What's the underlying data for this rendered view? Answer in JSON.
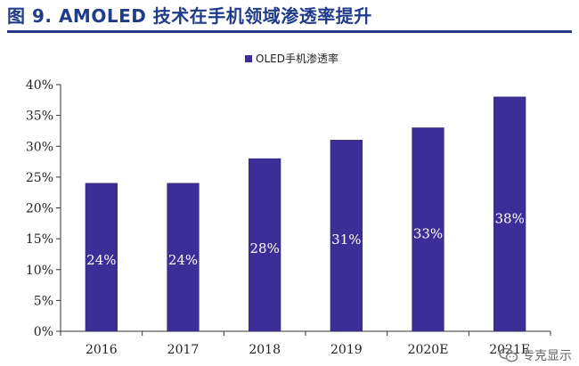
{
  "figure": {
    "title": "图 9. AMOLED 技术在手机领域渗透率提升"
  },
  "watermark": {
    "text": "专克显示",
    "icon": "wechat-icon"
  },
  "colors": {
    "bar": "#3d2d96",
    "title": "#1f3b8a",
    "axis": "#333333",
    "bar_label": "#ffffff"
  },
  "chart_data": {
    "type": "bar",
    "title": "",
    "legend": [
      "OLED手机渗透率"
    ],
    "legend_position": "top-center",
    "categories": [
      "2016",
      "2017",
      "2018",
      "2019",
      "2020E",
      "2021E"
    ],
    "series": [
      {
        "name": "OLED手机渗透率",
        "values": [
          24,
          24,
          28,
          31,
          33,
          38
        ],
        "labels": [
          "24%",
          "24%",
          "28%",
          "31%",
          "33%",
          "38%"
        ]
      }
    ],
    "ylim": [
      0,
      40
    ],
    "yticks": [
      0,
      5,
      10,
      15,
      20,
      25,
      30,
      35,
      40
    ],
    "ytick_labels": [
      "0%",
      "5%",
      "10%",
      "15%",
      "20%",
      "25%",
      "30%",
      "35%",
      "40%"
    ],
    "xlabel": "",
    "ylabel": "",
    "grid": false
  }
}
